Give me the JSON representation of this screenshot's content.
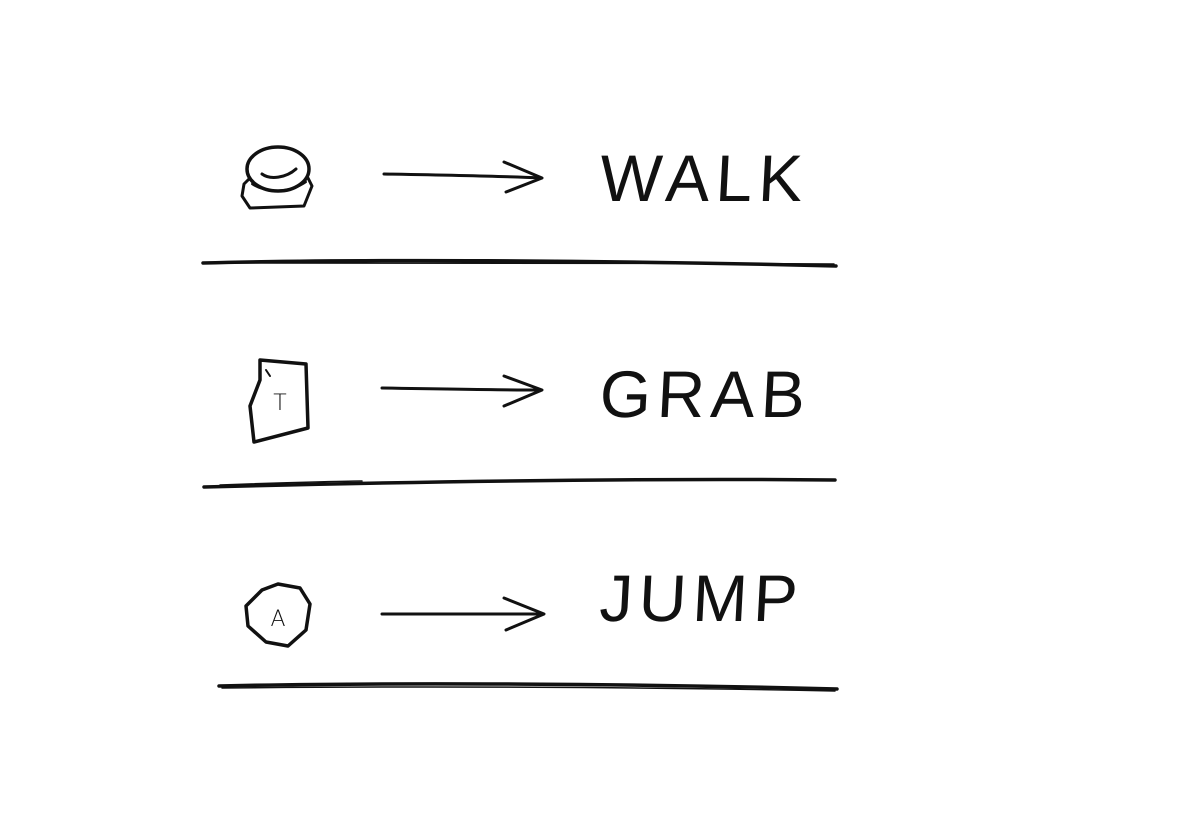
{
  "controls": [
    {
      "icon": "analog-stick-icon",
      "glyph": "",
      "action": "WALK"
    },
    {
      "icon": "trigger-button-icon",
      "glyph": "T",
      "action": "GRAB"
    },
    {
      "icon": "a-button-icon",
      "glyph": "A",
      "action": "JUMP"
    }
  ],
  "colors": {
    "ink": "#111111",
    "paper": "#ffffff"
  }
}
